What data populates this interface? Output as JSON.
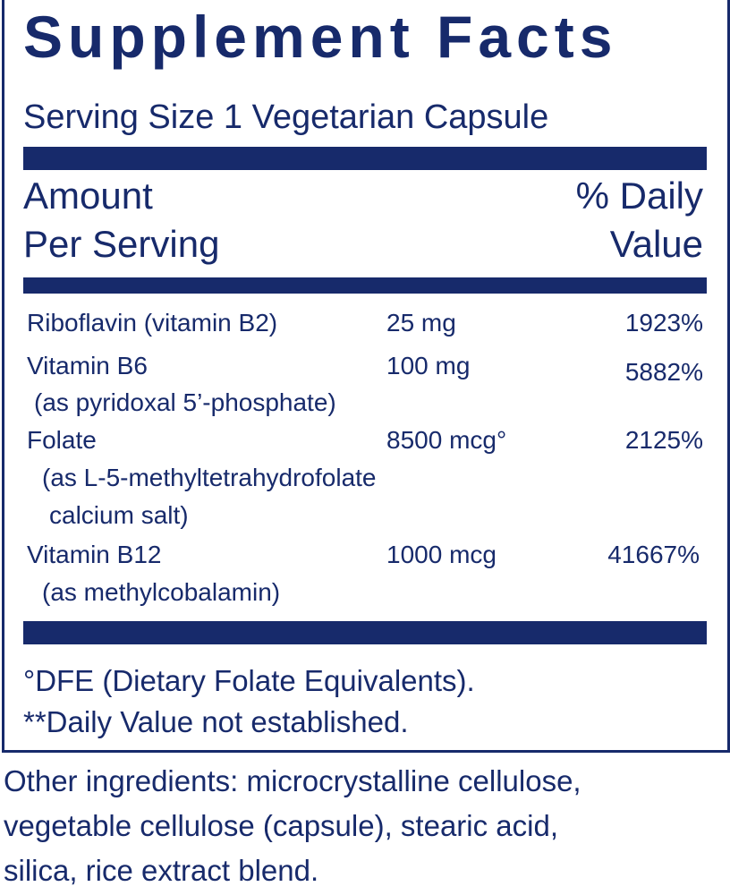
{
  "title": "Supplement Facts",
  "serving_size": "Serving Size 1 Vegetarian Capsule",
  "header": {
    "amount": [
      "Amount",
      "Per Serving"
    ],
    "daily_value": [
      "% Daily",
      "Value"
    ]
  },
  "rows": [
    {
      "name": "Riboflavin (vitamin B2)",
      "details": [],
      "amount": "25 mg",
      "daily_value": "1923%"
    },
    {
      "name": "Vitamin B6",
      "details": [
        "(as pyridoxal 5’-phosphate)"
      ],
      "amount": "100 mg",
      "daily_value": "5882%"
    },
    {
      "name": "Folate",
      "details": [
        "(as L-5-methyltetrahydrofolate",
        "calcium salt)"
      ],
      "amount": "8500 mcg°",
      "daily_value": "2125%"
    },
    {
      "name": "Vitamin B12",
      "details": [
        "(as methylcobalamin)"
      ],
      "amount": "1000 mcg",
      "daily_value": "41667%"
    }
  ],
  "footnotes": [
    "°DFE (Dietary Folate Equivalents).",
    "**Daily Value not established."
  ],
  "other_ingredients": [
    "Other ingredients: microcrystalline cellulose,",
    "vegetable cellulose (capsule), stearic acid,",
    "silica, rice extract blend."
  ]
}
